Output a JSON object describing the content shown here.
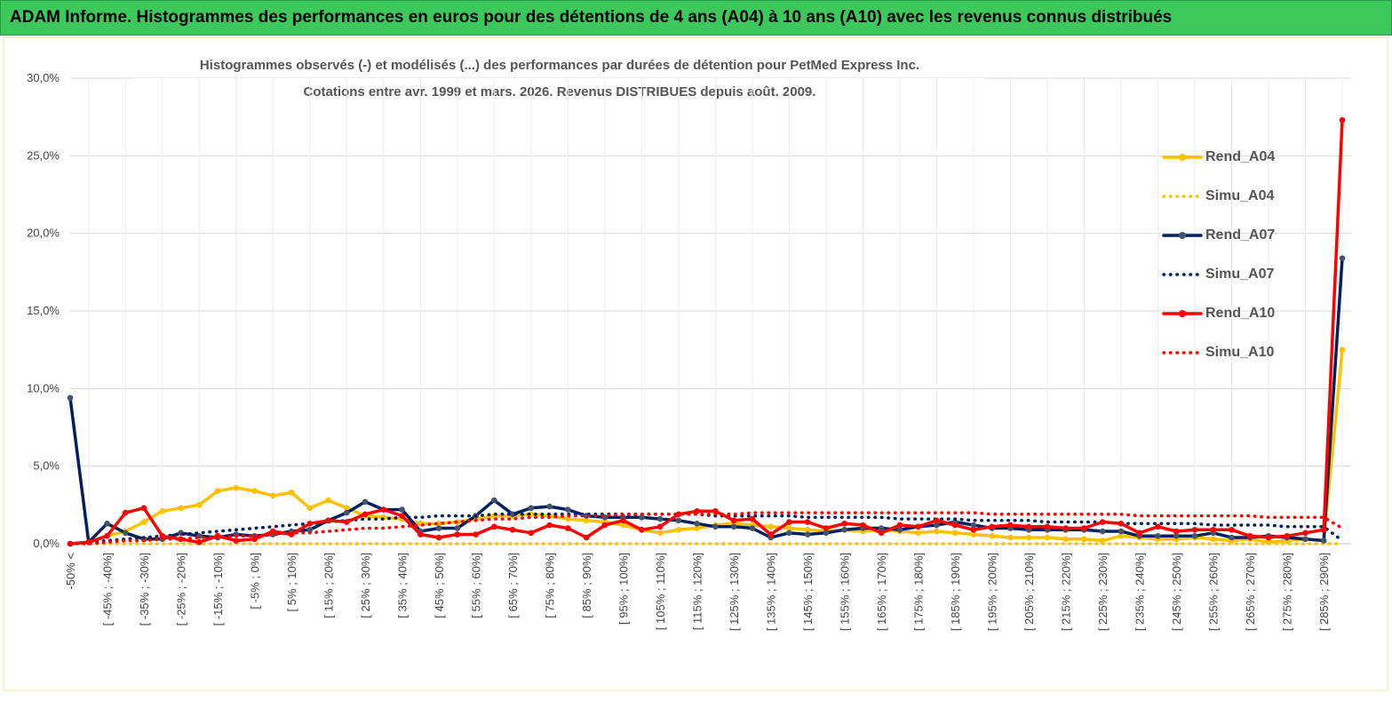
{
  "chart_data": {
    "type": "line",
    "title": "ADAM Informe. Histogrammes des performances en euros pour des détentions de 4 ans (A04) à 10 ans (A10) avec les revenus connus distribués",
    "subtitle": [
      "Histogrammes observés (-) et modélisés (...) des performances par durées de détention pour PetMed Express Inc.",
      "Cotations entre avr. 1999 et mars. 2026. Revenus DISTRIBUES depuis août. 2009."
    ],
    "categories": [
      "-50% <",
      null,
      "[ -45% ; -40%]",
      null,
      "[ -35% ; -30%]",
      null,
      "[ -25% ; -20%]",
      null,
      "[ -15% ; -10%]",
      null,
      "[ -5% ; 0%]",
      null,
      "[ 5% ; 10%]",
      null,
      "[ 15% ; 20%]",
      null,
      "[ 25% ; 30%]",
      null,
      "[ 35% ; 40%]",
      null,
      "[ 45% ; 50%]",
      null,
      "[ 55% ; 60%]",
      null,
      "[ 65% ; 70%]",
      null,
      "[ 75% ; 80%]",
      null,
      "[ 85% ; 90%]",
      null,
      "[ 95% ; 100%]",
      null,
      "[ 105% ; 110%]",
      null,
      "[ 115% ; 120%]",
      null,
      "[ 125% ; 130%]",
      null,
      "[ 135% ; 140%]",
      null,
      "[ 145% ; 150%]",
      null,
      "[ 155% ; 160%]",
      null,
      "[ 165% ; 170%]",
      null,
      "[ 175% ; 180%]",
      null,
      "[ 185% ; 190%]",
      null,
      "[ 195% ; 200%]",
      null,
      "[ 205% ; 210%]",
      null,
      "[ 215% ; 220%]",
      null,
      "[ 225% ; 230%]",
      null,
      "[ 235% ; 240%]",
      null,
      "[ 245% ; 250%]",
      null,
      "[ 255% ; 260%]",
      null,
      "[ 265% ; 270%]",
      null,
      "[ 275% ; 280%]",
      null,
      "[ 285% ; 290%]",
      null
    ],
    "ylim": [
      0,
      30
    ],
    "yticks": [
      {
        "value": 0,
        "label": "0,0%"
      },
      {
        "value": 5,
        "label": "5,0%"
      },
      {
        "value": 10,
        "label": "10,0%"
      },
      {
        "value": 15,
        "label": "15,0%"
      },
      {
        "value": 20,
        "label": "20,0%"
      },
      {
        "value": 25,
        "label": "25,0%"
      },
      {
        "value": 30,
        "label": "30,0%"
      }
    ],
    "grid": true,
    "legend": "right",
    "series": [
      {
        "name": "Rend_A04",
        "color": "#ffc000",
        "style": "solid",
        "values": [
          0,
          0.1,
          0.5,
          0.8,
          1.4,
          2.1,
          2.3,
          2.5,
          3.4,
          3.6,
          3.4,
          3.1,
          3.3,
          2.3,
          2.8,
          2.3,
          1.8,
          1.7,
          1.6,
          1.3,
          1.3,
          1.4,
          1.6,
          1.8,
          1.8,
          1.9,
          1.8,
          1.6,
          1.5,
          1.4,
          1.2,
          0.9,
          0.7,
          0.9,
          1.0,
          1.2,
          1.3,
          1.2,
          1.1,
          1.0,
          0.9,
          0.8,
          0.9,
          0.8,
          0.9,
          0.8,
          0.7,
          0.8,
          0.7,
          0.6,
          0.5,
          0.4,
          0.4,
          0.4,
          0.3,
          0.3,
          0.2,
          0.5,
          0.4,
          0.3,
          0.3,
          0.4,
          0.3,
          0.2,
          0.3,
          0.1,
          0.2,
          0.3,
          0.2,
          12.5
        ]
      },
      {
        "name": "Simu_A04",
        "color": "#ffc000",
        "style": "dotted",
        "values": [
          0,
          0,
          0,
          0,
          0,
          0,
          0,
          0,
          0,
          0,
          0,
          0,
          0,
          0,
          0,
          0,
          0,
          0,
          0,
          0,
          0,
          0,
          0,
          0,
          0,
          0,
          0,
          0,
          0,
          0,
          0,
          0,
          0,
          0,
          0,
          0,
          0,
          0,
          0,
          0,
          0,
          0,
          0,
          0,
          0,
          0,
          0,
          0,
          0,
          0,
          0,
          0,
          0,
          0,
          0,
          0,
          0,
          0,
          0,
          0,
          0,
          0,
          0,
          0,
          0,
          0,
          0,
          0,
          0,
          0
        ]
      },
      {
        "name": "Rend_A07",
        "color": "#002060",
        "marker": "#44546a",
        "style": "solid",
        "values": [
          9.4,
          0.1,
          1.3,
          0.7,
          0.3,
          0.3,
          0.7,
          0.5,
          0.4,
          0.6,
          0.5,
          0.6,
          0.8,
          0.9,
          1.5,
          2.0,
          2.7,
          2.2,
          2.2,
          0.8,
          1.0,
          1.0,
          1.8,
          2.8,
          1.9,
          2.3,
          2.4,
          2.2,
          1.8,
          1.7,
          1.7,
          1.7,
          1.6,
          1.5,
          1.3,
          1.1,
          1.1,
          1.0,
          0.4,
          0.7,
          0.6,
          0.7,
          0.9,
          1.0,
          1.0,
          0.9,
          1.1,
          1.2,
          1.4,
          1.2,
          1.0,
          1.0,
          0.9,
          0.9,
          0.9,
          0.9,
          0.8,
          0.8,
          0.5,
          0.5,
          0.5,
          0.5,
          0.7,
          0.4,
          0.4,
          0.5,
          0.4,
          0.3,
          0.2,
          18.4
        ]
      },
      {
        "name": "Simu_A07",
        "color": "#002060",
        "style": "dotted",
        "values": [
          0,
          0.1,
          0.2,
          0.3,
          0.4,
          0.5,
          0.6,
          0.7,
          0.8,
          0.9,
          1.0,
          1.1,
          1.2,
          1.3,
          1.4,
          1.5,
          1.6,
          1.6,
          1.7,
          1.7,
          1.8,
          1.8,
          1.8,
          1.9,
          1.9,
          1.9,
          1.9,
          1.9,
          1.9,
          1.9,
          1.9,
          1.9,
          1.9,
          1.9,
          1.9,
          1.8,
          1.8,
          1.8,
          1.8,
          1.8,
          1.7,
          1.7,
          1.7,
          1.7,
          1.7,
          1.6,
          1.6,
          1.6,
          1.6,
          1.5,
          1.5,
          1.5,
          1.5,
          1.4,
          1.4,
          1.4,
          1.4,
          1.3,
          1.3,
          1.3,
          1.3,
          1.3,
          1.2,
          1.2,
          1.2,
          1.2,
          1.1,
          1.1,
          1.1,
          0.2
        ]
      },
      {
        "name": "Rend_A10",
        "color": "#ff0000",
        "style": "solid",
        "values": [
          0,
          0.1,
          0.5,
          2.0,
          2.3,
          0.5,
          0.3,
          0.1,
          0.5,
          0.2,
          0.3,
          0.8,
          0.6,
          1.3,
          1.5,
          1.4,
          1.9,
          2.2,
          1.8,
          0.6,
          0.4,
          0.6,
          0.6,
          1.1,
          0.9,
          0.7,
          1.2,
          1.0,
          0.4,
          1.2,
          1.5,
          0.9,
          1.1,
          1.9,
          2.1,
          2.1,
          1.5,
          1.6,
          0.6,
          1.4,
          1.4,
          1.0,
          1.3,
          1.2,
          0.7,
          1.2,
          1.1,
          1.5,
          1.2,
          0.9,
          1.1,
          1.2,
          1.1,
          1.1,
          1.0,
          1.0,
          1.4,
          1.3,
          0.7,
          1.1,
          0.8,
          0.9,
          0.9,
          0.9,
          0.5,
          0.4,
          0.5,
          0.7,
          0.9,
          27.3
        ]
      },
      {
        "name": "Simu_A10",
        "color": "#ff0000",
        "style": "dotted",
        "values": [
          0,
          0,
          0.1,
          0.2,
          0.2,
          0.3,
          0.3,
          0.4,
          0.4,
          0.5,
          0.5,
          0.6,
          0.7,
          0.7,
          0.8,
          0.9,
          1.0,
          1.0,
          1.1,
          1.2,
          1.3,
          1.4,
          1.5,
          1.6,
          1.6,
          1.7,
          1.7,
          1.8,
          1.8,
          1.8,
          1.9,
          1.9,
          1.9,
          1.9,
          1.9,
          1.9,
          1.9,
          2.0,
          2.0,
          2.0,
          2.0,
          2.0,
          2.0,
          2.0,
          2.0,
          2.0,
          2.0,
          2.0,
          2.0,
          2.0,
          1.9,
          1.9,
          1.9,
          1.9,
          1.9,
          1.9,
          1.9,
          1.9,
          1.8,
          1.8,
          1.8,
          1.8,
          1.8,
          1.8,
          1.8,
          1.7,
          1.7,
          1.7,
          1.7,
          1.0
        ]
      }
    ]
  }
}
